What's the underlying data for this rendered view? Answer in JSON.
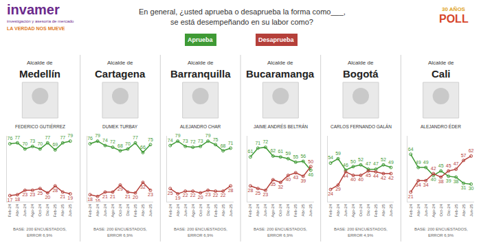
{
  "header": {
    "logo": {
      "name": "invamer",
      "tagline": "investigación y asesoría de mercado",
      "slogan": "LA VERDAD NOS MUEVE"
    },
    "badge": {
      "line1": "30 AÑOS",
      "line2": "POLL"
    },
    "question": [
      "En general, ¿usted aprueba o desaprueba la forma como___,",
      "se está desempeñando en su labor como?"
    ]
  },
  "legend_labels": [
    {
      "name": "Aprueba",
      "color": "#3f9a35"
    },
    {
      "name": "Desaprueba",
      "color": "#b5403a"
    }
  ],
  "chart_data": [
    {
      "type": "line",
      "subtitle": "Alcalde de",
      "title": "Medellín",
      "person": "FEDERICO GUTIÉRREZ",
      "footnote": [
        "BASE: 200 ENCUESTADOS,",
        "ERROR 6,9%"
      ],
      "categories": [
        "Feb-24",
        "Abr-24",
        "Jun-24",
        "Ago-24",
        "Oct-24",
        "Dic-24",
        "Feb-25",
        "Abr-25",
        "Jun-25"
      ],
      "series": [
        {
          "name": "Aprueba",
          "color": "#3f9a35",
          "values": [
            76,
            77,
            70,
            73,
            70,
            77,
            69,
            77,
            79
          ]
        },
        {
          "name": "Desaprueba",
          "color": "#b5403a",
          "values": [
            17,
            18,
            23,
            23,
            25,
            20,
            28,
            21,
            19
          ]
        }
      ],
      "ylim": [
        10,
        85
      ],
      "grid": false,
      "data_labels": true,
      "tick_labels": "x",
      "marker": "circle-open",
      "line_style": "solid"
    },
    {
      "type": "line",
      "subtitle": "Alcalde de",
      "title": "Cartagena",
      "person": "DUMEK TURBAY",
      "footnote": [
        "BASE: 200 ENCUESTADOS,",
        "ERROR 6,9%"
      ],
      "categories": [
        "Feb-24",
        "Abr-24",
        "Jun-24",
        "Ago-24",
        "Oct-24",
        "Dic-24",
        "Feb-25",
        "Abr-25",
        "Jun-25"
      ],
      "series": [
        {
          "name": "Aprueba",
          "color": "#3f9a35",
          "values": [
            76,
            79,
            74,
            72,
            68,
            70,
            77,
            66,
            75
          ]
        },
        {
          "name": "Desaprueba",
          "color": "#b5403a",
          "values": [
            18,
            16,
            21,
            21,
            29,
            21,
            20,
            32,
            23
          ]
        }
      ],
      "ylim": [
        10,
        85
      ],
      "grid": false,
      "data_labels": true,
      "tick_labels": "x",
      "marker": "circle-open",
      "line_style": "solid"
    },
    {
      "type": "line",
      "subtitle": "Alcalde de",
      "title": "Barranquilla",
      "person": "ALEJANDRO CHAR",
      "footnote": [
        "BASE: 200 ENCUESTADOS,",
        "ERROR 6,9%"
      ],
      "categories": [
        "Feb-24",
        "Abr-24",
        "Jun-24",
        "Ago-24",
        "Oct-24",
        "Dic-24",
        "Feb-25",
        "Abr-25",
        "Jun-25"
      ],
      "series": [
        {
          "name": "Aprueba",
          "color": "#3f9a35",
          "values": [
            74,
            79,
            73,
            72,
            73,
            79,
            75,
            68,
            71
          ]
        },
        {
          "name": "Desaprueba",
          "color": "#b5403a",
          "values": [
            25,
            19,
            22,
            22,
            20,
            23,
            22,
            22,
            28
          ]
        }
      ],
      "ylim": [
        10,
        85
      ],
      "grid": false,
      "data_labels": true,
      "tick_labels": "x",
      "marker": "circle-open",
      "line_style": "solid"
    },
    {
      "type": "line",
      "subtitle": "Alcalde de",
      "title": "Bucaramanga",
      "person": "JAIME ANDRÉS BELTRÁN",
      "footnote": [
        "BASE: 200 ENCUESTADOS,",
        "ERROR 6,9%"
      ],
      "categories": [
        "Feb-24",
        "Abr-24",
        "Jun-24",
        "Ago-24",
        "Oct-24",
        "Dic-24",
        "Feb-25",
        "Abr-25",
        "Jun-25"
      ],
      "series": [
        {
          "name": "Aprueba",
          "color": "#3f9a35",
          "values": [
            61,
            71,
            72,
            62,
            61,
            59,
            55,
            56,
            46
          ]
        },
        {
          "name": "Desaprueba",
          "color": "#b5403a",
          "values": [
            28,
            25,
            23,
            35,
            32,
            40,
            43,
            39,
            50
          ]
        }
      ],
      "ylim": [
        10,
        85
      ],
      "grid": false,
      "data_labels": true,
      "tick_labels": "x",
      "marker": "circle-open",
      "line_style": "solid"
    },
    {
      "type": "line",
      "subtitle": "Alcalde de",
      "title": "Bogotá",
      "person": "CARLOS FERNANDO GALÁN",
      "footnote": [
        "BASE: 200 ENCUESTADOS,",
        "ERROR 4,9%"
      ],
      "categories": [
        "Feb-24",
        "Abr-24",
        "Jun-24",
        "Ago-24",
        "Oct-24",
        "Dic-24",
        "Feb-25",
        "Abr-25",
        "Jun-25"
      ],
      "series": [
        {
          "name": "Aprueba",
          "color": "#3f9a35",
          "values": [
            54,
            59,
            46,
            50,
            52,
            47,
            47,
            52,
            49
          ]
        },
        {
          "name": "Desaprueba",
          "color": "#b5403a",
          "values": [
            24,
            29,
            44,
            40,
            40,
            45,
            44,
            42,
            42
          ]
        }
      ],
      "ylim": [
        10,
        85
      ],
      "grid": false,
      "data_labels": true,
      "tick_labels": "x",
      "marker": "circle-open",
      "line_style": "solid"
    },
    {
      "type": "line",
      "subtitle": "Alcalde de",
      "title": "Cali",
      "person": "ALEJANDRO ÉDER",
      "footnote": [
        "BASE: 200 ENCUESTADOS,",
        "ERROR 6,9%"
      ],
      "categories": [
        "Feb-24",
        "Abr-24",
        "Jun-24",
        "Ago-24",
        "Oct-24",
        "Dic-24",
        "Feb-25",
        "Abr-25",
        "Jun-25"
      ],
      "series": [
        {
          "name": "Aprueba",
          "color": "#3f9a35",
          "values": [
            64,
            49,
            49,
            40,
            45,
            39,
            38,
            31,
            30
          ]
        },
        {
          "name": "Desaprueba",
          "color": "#b5403a",
          "values": [
            21,
            34,
            34,
            42,
            38,
            45,
            47,
            57,
            62
          ]
        }
      ],
      "ylim": [
        10,
        85
      ],
      "grid": false,
      "data_labels": true,
      "tick_labels": "x",
      "marker": "circle-open",
      "line_style": "solid"
    }
  ]
}
